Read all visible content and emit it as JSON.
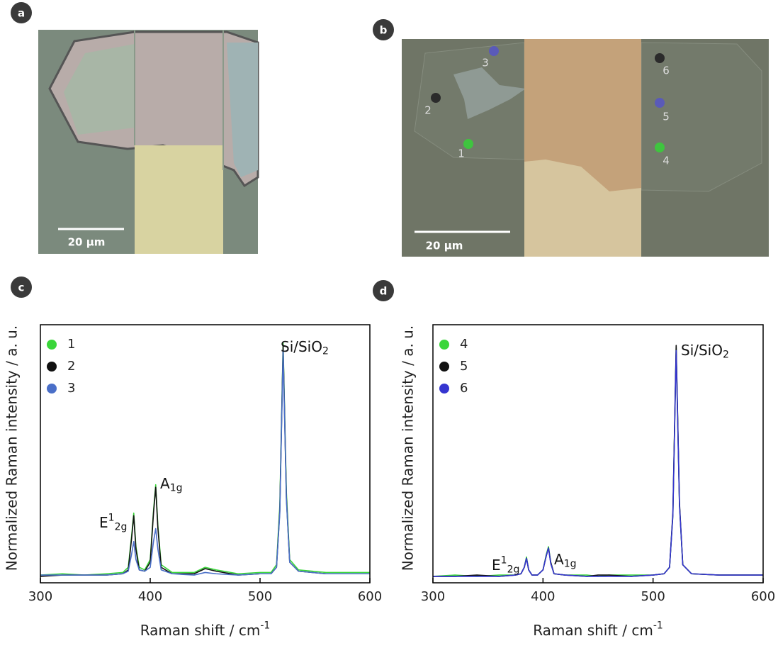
{
  "images": [
    {
      "label": "a",
      "scale_bar": "20 µm"
    },
    {
      "label": "b",
      "scale_bar": "20 µm",
      "spots": [
        {
          "label": "1",
          "color": "#3fc43f"
        },
        {
          "label": "2",
          "color": "#2b2b2b"
        },
        {
          "label": "3",
          "color": "#5a5ab8"
        },
        {
          "label": "4",
          "color": "#3fc43f"
        },
        {
          "label": "5",
          "color": "#5a5ab8"
        },
        {
          "label": "6",
          "color": "#2b2b2b"
        }
      ]
    }
  ],
  "chart_data": [
    {
      "type": "line",
      "panel": "c",
      "x_label": {
        "text": "Raman shift / cm",
        "sup": "-1"
      },
      "y_label": "Normalized Raman intensity / a. u.",
      "xlim": [
        300,
        600
      ],
      "xticks": [
        300,
        400,
        500,
        600
      ],
      "ylim": [
        0,
        100
      ],
      "x": [
        300,
        320,
        340,
        360,
        375,
        380,
        383,
        385,
        387,
        390,
        395,
        400,
        403,
        405,
        407,
        410,
        420,
        440,
        450,
        460,
        480,
        500,
        510,
        515,
        518,
        521,
        524,
        527,
        535,
        560,
        580,
        600
      ],
      "series": [
        {
          "name": "1",
          "color": "#3ad63a",
          "values": [
            3,
            3.5,
            3,
            3.5,
            4,
            6,
            18,
            27,
            14,
            6,
            5,
            9,
            28,
            38,
            22,
            7,
            4,
            4,
            6,
            5,
            3.5,
            4,
            4,
            7,
            30,
            93,
            35,
            9,
            5,
            4,
            4,
            4
          ]
        },
        {
          "name": "2",
          "color": "#111111",
          "values": [
            2.5,
            3,
            3,
            3,
            3.5,
            5,
            17,
            26,
            13,
            5,
            4.5,
            8,
            27,
            37,
            21,
            6,
            3.5,
            3.5,
            5.5,
            4.5,
            3,
            3.5,
            3.5,
            6,
            28,
            92,
            33,
            8,
            4.5,
            3.5,
            3.5,
            3.5
          ]
        },
        {
          "name": "3",
          "color": "#4a6fc8",
          "values": [
            3,
            3,
            3,
            3,
            3.5,
            4.5,
            11,
            16,
            9,
            5,
            4.5,
            6,
            16,
            21,
            13,
            5,
            3.5,
            3,
            4,
            3.5,
            3,
            3.5,
            3.5,
            6,
            27,
            90,
            32,
            8,
            4.5,
            3.5,
            3.5,
            3.5
          ]
        }
      ],
      "annotations": [
        {
          "text": "E",
          "sup": "1",
          "sub": "2g"
        },
        {
          "text": "A",
          "sub": "1g"
        },
        {
          "text": "Si/SiO",
          "sub": "2"
        }
      ]
    },
    {
      "type": "line",
      "panel": "d",
      "x_label": {
        "text": "Raman shift / cm",
        "sup": "-1"
      },
      "y_label": "Normalized Raman intensity / a. u.",
      "xlim": [
        300,
        600
      ],
      "xticks": [
        300,
        400,
        500,
        600
      ],
      "ylim": [
        0,
        100
      ],
      "x": [
        300,
        320,
        340,
        360,
        375,
        380,
        383,
        385,
        387,
        390,
        395,
        400,
        403,
        405,
        407,
        410,
        420,
        440,
        450,
        460,
        480,
        500,
        510,
        515,
        518,
        521,
        524,
        527,
        535,
        560,
        580,
        600
      ],
      "series": [
        {
          "name": "4",
          "color": "#3ad63a",
          "values": [
            2.5,
            3,
            2.5,
            3,
            3,
            3.5,
            6,
            10,
            5,
            3,
            3,
            5,
            11,
            14,
            8,
            3.5,
            3,
            3,
            2.5,
            3,
            3,
            3,
            3.5,
            6,
            26,
            91,
            30,
            7,
            3.5,
            3,
            3,
            3
          ]
        },
        {
          "name": "5",
          "color": "#111111",
          "values": [
            2.5,
            2.5,
            3,
            2.5,
            3,
            3.5,
            6,
            9.5,
            5,
            3,
            3,
            5,
            10.5,
            13.5,
            8,
            3.5,
            3,
            2.5,
            3,
            3,
            2.5,
            3,
            3.5,
            6,
            27,
            92,
            31,
            7,
            3.5,
            3,
            3,
            3
          ]
        },
        {
          "name": "6",
          "color": "#3535d0",
          "values": [
            2.5,
            2.5,
            2.5,
            2.5,
            3,
            3.5,
            6,
            9.5,
            5,
            3,
            3,
            5,
            10.5,
            13.5,
            7.5,
            3.5,
            3,
            2.5,
            2.5,
            2.5,
            2.5,
            3,
            3.5,
            6,
            26,
            90,
            30,
            7,
            3.5,
            3,
            3,
            3
          ]
        }
      ],
      "annotations": [
        {
          "text": "E",
          "sup": "1",
          "sub": "2g"
        },
        {
          "text": "A",
          "sub": "1g"
        },
        {
          "text": "Si/SiO",
          "sub": "2"
        }
      ]
    }
  ]
}
